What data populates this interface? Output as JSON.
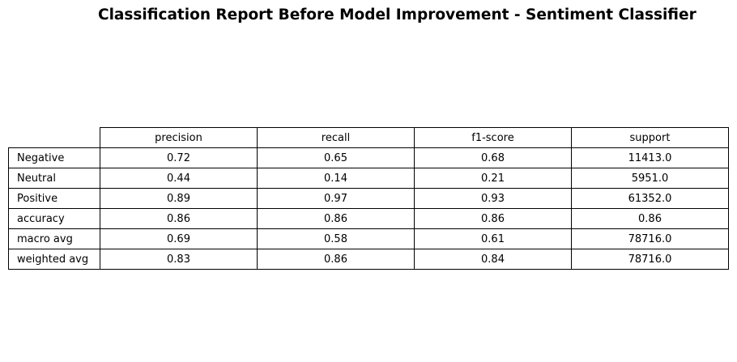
{
  "chart_data": {
    "type": "table",
    "title": "Classification Report Before Model Improvement - Sentiment Classifier",
    "columns": [
      "precision",
      "recall",
      "f1-score",
      "support"
    ],
    "rows": [
      {
        "label": "Negative",
        "values": [
          "0.72",
          "0.65",
          "0.68",
          "11413.0"
        ]
      },
      {
        "label": "Neutral",
        "values": [
          "0.44",
          "0.14",
          "0.21",
          "5951.0"
        ]
      },
      {
        "label": "Positive",
        "values": [
          "0.89",
          "0.97",
          "0.93",
          "61352.0"
        ]
      },
      {
        "label": "accuracy",
        "values": [
          "0.86",
          "0.86",
          "0.86",
          "0.86"
        ]
      },
      {
        "label": "macro avg",
        "values": [
          "0.69",
          "0.58",
          "0.61",
          "78716.0"
        ]
      },
      {
        "label": "weighted avg",
        "values": [
          "0.83",
          "0.86",
          "0.84",
          "78716.0"
        ]
      }
    ]
  }
}
